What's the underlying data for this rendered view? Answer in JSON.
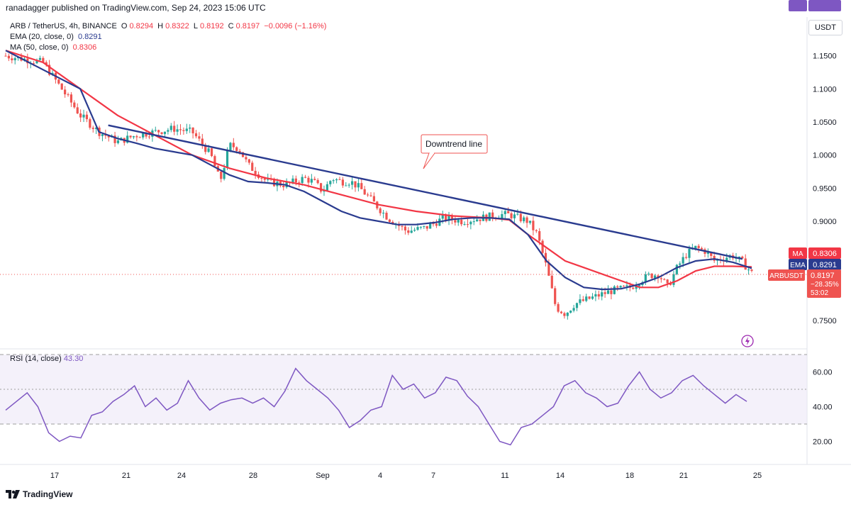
{
  "header": {
    "publisher": "ranadagger published on TradingView.com, Sep 24, 2023 15:06 UTC",
    "symbol": "ARB / TetherUS, 4h, BINANCE",
    "ohlc": {
      "o_label": "O",
      "o": "0.8294",
      "h_label": "H",
      "h": "0.8322",
      "l_label": "L",
      "l": "0.8192",
      "c_label": "C",
      "c": "0.8197",
      "change": "−0.0096 (−1.16%)"
    },
    "ema_label": "EMA (20, close, 0)",
    "ema_value": "0.8291",
    "ma_label": "MA (50, close, 0)",
    "ma_value": "0.8306",
    "currency": "USDT"
  },
  "colors": {
    "up": "#26a69a",
    "down": "#ef5350",
    "ema": "#2a3b8f",
    "ma": "#f23645",
    "trend": "#2a3b8f",
    "rsi": "#7e57c2",
    "rsi_band": "#ede7f6"
  },
  "annotation": {
    "text": "Downtrend line"
  },
  "price_tags": {
    "ma": {
      "label": "MA",
      "value": "0.8306"
    },
    "ema": {
      "label": "EMA",
      "value": "0.8291"
    },
    "last": {
      "label": "ARBUSDT",
      "value": "0.8197",
      "pct": "−28.35%",
      "countdown": "53:02"
    }
  },
  "rsi": {
    "label": "RSI (14, close)",
    "value": "43.30",
    "tag": "RSI"
  },
  "footer": {
    "brand": "TradingView"
  },
  "chart_data": [
    {
      "type": "candlestick",
      "title": "ARB / TetherUS, 4h, BINANCE",
      "xaxis_ticks": [
        "17",
        "21",
        "24",
        "28",
        "Sep",
        "4",
        "7",
        "11",
        "14",
        "18",
        "21",
        "25"
      ],
      "ylabels": [
        "1.1500",
        "1.1000",
        "1.0500",
        "1.0000",
        "0.9500",
        "0.9000",
        "0.7500"
      ],
      "ylim": [
        0.72,
        1.17
      ],
      "close_path": [
        [
          0,
          1.15
        ],
        [
          4,
          1.14
        ],
        [
          6,
          1.1
        ],
        [
          8,
          1.06
        ],
        [
          10,
          1.035
        ],
        [
          12,
          1.02
        ],
        [
          14,
          1.03
        ],
        [
          16,
          1.035
        ],
        [
          18,
          1.04
        ],
        [
          20,
          1.035
        ],
        [
          22,
          1.0
        ],
        [
          23,
          0.96
        ],
        [
          24,
          1.015
        ],
        [
          25,
          1.01
        ],
        [
          26,
          0.985
        ],
        [
          28,
          0.96
        ],
        [
          30,
          0.955
        ],
        [
          32,
          0.965
        ],
        [
          33,
          0.96
        ],
        [
          34,
          0.945
        ],
        [
          35,
          0.965
        ],
        [
          36,
          0.96
        ],
        [
          37,
          0.96
        ],
        [
          38,
          0.95
        ],
        [
          39,
          0.935
        ],
        [
          41,
          0.905
        ],
        [
          43,
          0.885
        ],
        [
          45,
          0.89
        ],
        [
          47,
          0.905
        ],
        [
          49,
          0.9
        ],
        [
          51,
          0.905
        ],
        [
          53,
          0.91
        ],
        [
          54,
          0.91
        ],
        [
          56,
          0.9
        ],
        [
          57,
          0.88
        ],
        [
          58,
          0.83
        ],
        [
          59,
          0.77
        ],
        [
          60,
          0.76
        ],
        [
          61,
          0.775
        ],
        [
          63,
          0.785
        ],
        [
          65,
          0.795
        ],
        [
          67,
          0.8
        ],
        [
          68,
          0.81
        ],
        [
          69,
          0.818
        ],
        [
          70,
          0.82
        ],
        [
          71,
          0.8
        ],
        [
          72,
          0.83
        ],
        [
          73,
          0.85
        ],
        [
          74,
          0.86
        ],
        [
          75,
          0.855
        ],
        [
          76,
          0.84
        ],
        [
          77,
          0.845
        ],
        [
          78,
          0.848
        ],
        [
          79,
          0.838
        ],
        [
          80,
          0.822
        ]
      ],
      "ema_20": [
        [
          0,
          1.158
        ],
        [
          8,
          1.1
        ],
        [
          10,
          1.035
        ],
        [
          12,
          1.025
        ],
        [
          14,
          1.018
        ],
        [
          16,
          1.01
        ],
        [
          18,
          1.005
        ],
        [
          20,
          1.0
        ],
        [
          22,
          0.985
        ],
        [
          24,
          0.97
        ],
        [
          26,
          0.96
        ],
        [
          28,
          0.958
        ],
        [
          30,
          0.955
        ],
        [
          32,
          0.945
        ],
        [
          34,
          0.93
        ],
        [
          36,
          0.915
        ],
        [
          38,
          0.905
        ],
        [
          40,
          0.9
        ],
        [
          42,
          0.895
        ],
        [
          44,
          0.895
        ],
        [
          46,
          0.898
        ],
        [
          48,
          0.903
        ],
        [
          50,
          0.905
        ],
        [
          52,
          0.905
        ],
        [
          54,
          0.903
        ],
        [
          56,
          0.88
        ],
        [
          58,
          0.84
        ],
        [
          60,
          0.815
        ],
        [
          62,
          0.8
        ],
        [
          64,
          0.797
        ],
        [
          66,
          0.798
        ],
        [
          68,
          0.805
        ],
        [
          70,
          0.815
        ],
        [
          72,
          0.83
        ],
        [
          74,
          0.84
        ],
        [
          76,
          0.843
        ],
        [
          78,
          0.838
        ],
        [
          80,
          0.829
        ]
      ],
      "ma_50": [
        [
          0,
          1.158
        ],
        [
          4,
          1.14
        ],
        [
          8,
          1.1
        ],
        [
          12,
          1.06
        ],
        [
          16,
          1.03
        ],
        [
          20,
          1.0
        ],
        [
          24,
          0.98
        ],
        [
          28,
          0.965
        ],
        [
          32,
          0.955
        ],
        [
          36,
          0.94
        ],
        [
          40,
          0.925
        ],
        [
          44,
          0.915
        ],
        [
          48,
          0.908
        ],
        [
          52,
          0.905
        ],
        [
          54,
          0.902
        ],
        [
          56,
          0.88
        ],
        [
          58,
          0.86
        ],
        [
          60,
          0.84
        ],
        [
          62,
          0.83
        ],
        [
          64,
          0.82
        ],
        [
          66,
          0.81
        ],
        [
          68,
          0.8
        ],
        [
          70,
          0.8
        ],
        [
          72,
          0.81
        ],
        [
          74,
          0.825
        ],
        [
          76,
          0.832
        ],
        [
          78,
          0.832
        ],
        [
          80,
          0.831
        ]
      ],
      "trendline": [
        [
          11,
          1.045
        ],
        [
          79,
          0.843
        ]
      ],
      "last_price": 0.8197
    },
    {
      "type": "line",
      "title": "RSI (14, close)",
      "ylabels": [
        "60.00",
        "40.00",
        "20.00"
      ],
      "ylim": [
        10,
        80
      ],
      "bands": [
        30,
        70
      ],
      "values": [
        [
          0,
          38
        ],
        [
          2,
          48
        ],
        [
          3,
          40
        ],
        [
          4,
          25
        ],
        [
          5,
          20
        ],
        [
          6,
          23
        ],
        [
          7,
          22
        ],
        [
          8,
          35
        ],
        [
          9,
          37
        ],
        [
          10,
          43
        ],
        [
          11,
          47
        ],
        [
          12,
          52
        ],
        [
          13,
          40
        ],
        [
          14,
          45
        ],
        [
          15,
          38
        ],
        [
          16,
          42
        ],
        [
          17,
          55
        ],
        [
          18,
          45
        ],
        [
          19,
          38
        ],
        [
          20,
          42
        ],
        [
          21,
          44
        ],
        [
          22,
          45
        ],
        [
          23,
          42
        ],
        [
          24,
          45
        ],
        [
          25,
          40
        ],
        [
          26,
          49
        ],
        [
          27,
          62
        ],
        [
          28,
          55
        ],
        [
          29,
          50
        ],
        [
          30,
          45
        ],
        [
          31,
          38
        ],
        [
          32,
          28
        ],
        [
          33,
          32
        ],
        [
          34,
          38
        ],
        [
          35,
          40
        ],
        [
          36,
          58
        ],
        [
          37,
          50
        ],
        [
          38,
          53
        ],
        [
          39,
          45
        ],
        [
          40,
          48
        ],
        [
          41,
          57
        ],
        [
          42,
          55
        ],
        [
          43,
          46
        ],
        [
          44,
          40
        ],
        [
          45,
          30
        ],
        [
          46,
          20
        ],
        [
          47,
          18
        ],
        [
          48,
          28
        ],
        [
          49,
          30
        ],
        [
          50,
          35
        ],
        [
          51,
          40
        ],
        [
          52,
          52
        ],
        [
          53,
          55
        ],
        [
          54,
          48
        ],
        [
          55,
          45
        ],
        [
          56,
          40
        ],
        [
          57,
          42
        ],
        [
          58,
          52
        ],
        [
          59,
          60
        ],
        [
          60,
          50
        ],
        [
          61,
          45
        ],
        [
          62,
          48
        ],
        [
          63,
          55
        ],
        [
          64,
          58
        ],
        [
          65,
          52
        ],
        [
          66,
          47
        ],
        [
          67,
          42
        ],
        [
          68,
          47
        ],
        [
          69,
          43
        ]
      ]
    }
  ]
}
